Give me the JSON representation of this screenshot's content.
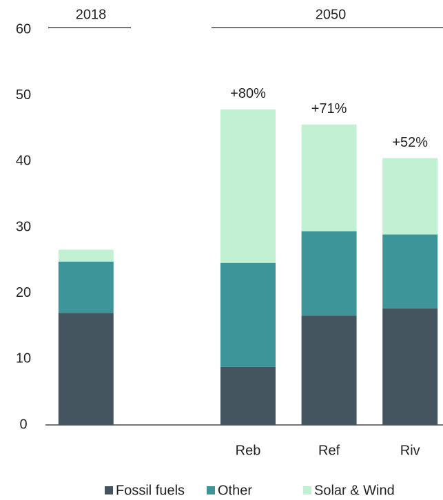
{
  "chart_data": {
    "type": "stacked_bar",
    "groups": [
      "2018",
      "2050"
    ],
    "categories": [
      null,
      null,
      "Reb",
      "Ref",
      "Riv"
    ],
    "bar_annotations": [
      null,
      null,
      "+80%",
      "+71%",
      "+52%"
    ],
    "series": [
      {
        "name": "Fossil fuels",
        "color": "#455560",
        "values": [
          17.0,
          null,
          8.8,
          16.6,
          17.7
        ]
      },
      {
        "name": "Other",
        "color": "#3e9599",
        "values": [
          7.8,
          null,
          15.8,
          12.8,
          11.2
        ]
      },
      {
        "name": "Solar & Wind",
        "color": "#c2f0d2",
        "values": [
          1.8,
          null,
          23.3,
          16.2,
          11.6
        ]
      }
    ],
    "ylim": [
      0,
      60
    ],
    "yticks": [
      0,
      10,
      20,
      30,
      40,
      50,
      60
    ],
    "grid": false
  }
}
